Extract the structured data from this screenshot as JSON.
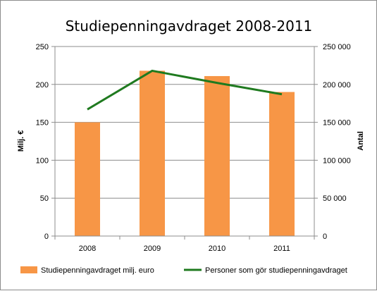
{
  "chart_data": {
    "type": "bar",
    "title": "Studiepenningavdraget 2008-2011",
    "categories": [
      "2008",
      "2009",
      "2010",
      "2011"
    ],
    "ylabel": "Milj. €",
    "y2label": "Antal",
    "ylim": [
      0,
      250
    ],
    "y2lim": [
      0,
      250000
    ],
    "yticks": [
      "0",
      "50",
      "100",
      "150",
      "200",
      "250"
    ],
    "y2ticks": [
      "0",
      "50 000",
      "100 000",
      "150 000",
      "200 000",
      "250 000"
    ],
    "grid": true,
    "legend_position": "bottom",
    "series": [
      {
        "name": "Studiepenningavdraget milj. euro",
        "type": "bar",
        "axis": "left",
        "color": "#f79646",
        "values": [
          150,
          218,
          211,
          190
        ]
      },
      {
        "name": "Personer som gör studiepenningavdraget",
        "type": "line",
        "axis": "right",
        "color": "#1f7a1f",
        "values": [
          167000,
          218000,
          202000,
          187000
        ]
      }
    ]
  }
}
